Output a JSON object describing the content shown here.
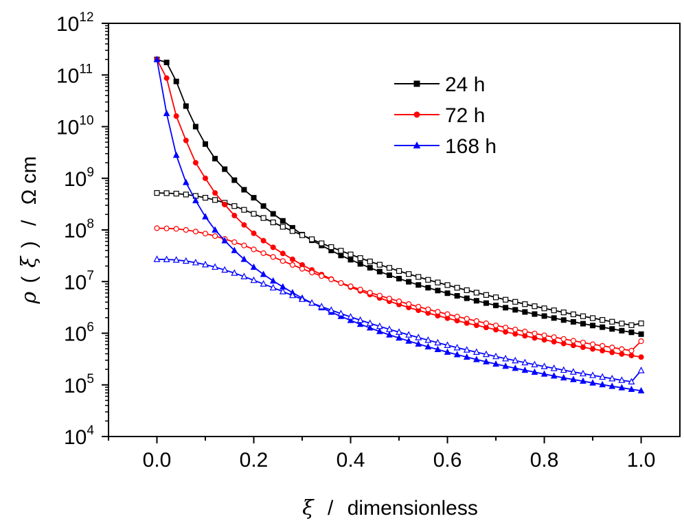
{
  "chart_data": {
    "type": "line",
    "title": "",
    "xlabel": {
      "symbol": "ξ",
      "separator": "/",
      "text": "dimensionless"
    },
    "ylabel": {
      "symbol": "ρ",
      "open": "(",
      "arg": "ξ",
      "close": ")",
      "separator": "/",
      "unit": "Ω cm"
    },
    "xlim": [
      -0.1,
      1.08
    ],
    "ylim": [
      10000,
      1000000000000
    ],
    "yscale": "log",
    "grid": false,
    "legend_position": "top-right",
    "xticks": [
      {
        "value": 0.0,
        "label": "0.0"
      },
      {
        "value": 0.2,
        "label": "0.2"
      },
      {
        "value": 0.4,
        "label": "0.4"
      },
      {
        "value": 0.6,
        "label": "0.6"
      },
      {
        "value": 0.8,
        "label": "0.8"
      },
      {
        "value": 1.0,
        "label": "1.0"
      }
    ],
    "yticks": [
      {
        "exp": 4,
        "base": "10",
        "sup": "4"
      },
      {
        "exp": 5,
        "base": "10",
        "sup": "5"
      },
      {
        "exp": 6,
        "base": "10",
        "sup": "6"
      },
      {
        "exp": 7,
        "base": "10",
        "sup": "7"
      },
      {
        "exp": 8,
        "base": "10",
        "sup": "8"
      },
      {
        "exp": 9,
        "base": "10",
        "sup": "9"
      },
      {
        "exp": 10,
        "base": "10",
        "sup": "10"
      },
      {
        "exp": 11,
        "base": "10",
        "sup": "11"
      },
      {
        "exp": 12,
        "base": "10",
        "sup": "12"
      }
    ],
    "x": [
      0.0,
      0.02,
      0.04,
      0.06,
      0.08,
      0.1,
      0.12,
      0.14,
      0.16,
      0.18,
      0.2,
      0.22,
      0.24,
      0.26,
      0.28,
      0.3,
      0.32,
      0.34,
      0.36,
      0.38,
      0.4,
      0.42,
      0.44,
      0.46,
      0.48,
      0.5,
      0.52,
      0.54,
      0.56,
      0.58,
      0.6,
      0.62,
      0.64,
      0.66,
      0.68,
      0.7,
      0.72,
      0.74,
      0.76,
      0.78,
      0.8,
      0.82,
      0.84,
      0.86,
      0.88,
      0.9,
      0.92,
      0.94,
      0.96,
      0.98,
      1.0
    ],
    "series": [
      {
        "name": "24 h",
        "color": "#000000",
        "marker": "square",
        "filled": true,
        "values": [
          200000000000.0,
          175000000000.0,
          75000000000.0,
          25000000000.0,
          10000000000.0,
          4600000000.0,
          2400000000.0,
          1500000000.0,
          920000000.0,
          600000000.0,
          420000000.0,
          290000000.0,
          205000000.0,
          150000000.0,
          110000000.0,
          81000000.0,
          63000000.0,
          50000000.0,
          40000000.0,
          32000000.0,
          26500000.0,
          22000000.0,
          18500000.0,
          15600000.0,
          13300000.0,
          11400000.0,
          9900000.0,
          8600000.0,
          7600000.0,
          6700000.0,
          5950000.0,
          5300000.0,
          4750000.0,
          4250000.0,
          3830000.0,
          3450000.0,
          3120000.0,
          2840000.0,
          2580000.0,
          2350000.0,
          2150000.0,
          1970000.0,
          1800000.0,
          1660000.0,
          1530000.0,
          1410000.0,
          1310000.0,
          1210000.0,
          1120000.0,
          1040000.0,
          960000.0
        ]
      },
      {
        "name": "",
        "color": "#000000",
        "marker": "square",
        "filled": false,
        "values": [
          520000000.0,
          515000000.0,
          505000000.0,
          485000000.0,
          455000000.0,
          420000000.0,
          380000000.0,
          335000000.0,
          290000000.0,
          245000000.0,
          205000000.0,
          170000000.0,
          140000000.0,
          115000000.0,
          95000000.0,
          79000000.0,
          66000000.0,
          55000000.0,
          46500000.0,
          39500000.0,
          33500000.0,
          28500000.0,
          24500000.0,
          21200000.0,
          18400000.0,
          16000000.0,
          14000000.0,
          12300000.0,
          10800000.0,
          9600000.0,
          8550000.0,
          7600000.0,
          6800000.0,
          6100000.0,
          5500000.0,
          4950000.0,
          4450000.0,
          4050000.0,
          3650000.0,
          3330000.0,
          3030000.0,
          2770000.0,
          2530000.0,
          2320000.0,
          2130000.0,
          1960000.0,
          1810000.0,
          1670000.0,
          1540000.0,
          1430000.0,
          1550000.0
        ]
      },
      {
        "name": "72 h",
        "color": "#ff0000",
        "marker": "circle",
        "filled": true,
        "values": [
          200000000000.0,
          87000000000.0,
          16000000000.0,
          5400000000.0,
          2000000000.0,
          1000000000.0,
          520000000.0,
          310000000.0,
          190000000.0,
          125000000.0,
          86000000.0,
          62000000.0,
          46000000.0,
          35000000.0,
          27000000.0,
          21000000.0,
          16800000.0,
          13700000.0,
          11200000.0,
          9300000.0,
          7800000.0,
          6600000.0,
          5600000.0,
          4800000.0,
          4150000.0,
          3600000.0,
          3150000.0,
          2780000.0,
          2460000.0,
          2180000.0,
          1950000.0,
          1750000.0,
          1570000.0,
          1420000.0,
          1290000.0,
          1170000.0,
          1060000.0,
          970000.0,
          890000.0,
          810000.0,
          745000.0,
          685000.0,
          630000.0,
          580000.0,
          535000.0,
          495000.0,
          460000.0,
          425000.0,
          395000.0,
          370000.0,
          345000.0
        ]
      },
      {
        "name": "",
        "color": "#ff0000",
        "marker": "circle",
        "filled": false,
        "values": [
          108000000.0,
          107000000.0,
          105000000.0,
          100000000.0,
          93000000.0,
          85000000.0,
          76000000.0,
          67000000.0,
          58000000.0,
          50000000.0,
          42000000.0,
          35500000.0,
          30000000.0,
          25000000.0,
          21000000.0,
          17700000.0,
          15000000.0,
          12800000.0,
          11000000.0,
          9400000.0,
          8100000.0,
          7000000.0,
          6100000.0,
          5350000.0,
          4700000.0,
          4150000.0,
          3670000.0,
          3260000.0,
          2900000.0,
          2600000.0,
          2340000.0,
          2100000.0,
          1900000.0,
          1720000.0,
          1560000.0,
          1420000.0,
          1290000.0,
          1180000.0,
          1080000.0,
          990000.0,
          910000.0,
          840000.0,
          775000.0,
          715000.0,
          660000.0,
          610000.0,
          570000.0,
          530000.0,
          493000.0,
          460000.0,
          700000.0
        ]
      },
      {
        "name": "168 h",
        "color": "#0000ff",
        "marker": "triangle",
        "filled": true,
        "values": [
          200000000000.0,
          18000000000.0,
          2800000000.0,
          830000000.0,
          370000000.0,
          180000000.0,
          100000000.0,
          62000000.0,
          40000000.0,
          27000000.0,
          19000000.0,
          13800000.0,
          10300000.0,
          7900000.0,
          6100000.0,
          4800000.0,
          3850000.0,
          3120000.0,
          2560000.0,
          2120000.0,
          1770000.0,
          1490000.0,
          1270000.0,
          1080000.0,
          930000.0,
          810000.0,
          705000.0,
          620000.0,
          545000.0,
          485000.0,
          430000.0,
          385000.0,
          345000.0,
          310000.0,
          280000.0,
          253000.0,
          230000.0,
          210000.0,
          192000.0,
          176000.0,
          162000.0,
          149000.0,
          137000.0,
          127000.0,
          118000.0,
          109000.0,
          101000.0,
          94000.0,
          88000.0,
          82000.0,
          77000.0
        ]
      },
      {
        "name": "",
        "color": "#0000ff",
        "marker": "triangle",
        "filled": false,
        "values": [
          27000000.0,
          26800000.0,
          26200000.0,
          25000000.0,
          23300000.0,
          21300000.0,
          19100000.0,
          16800000.0,
          14600000.0,
          12500000.0,
          10600000.0,
          9000000.0,
          7600000.0,
          6400000.0,
          5400000.0,
          4550000.0,
          3850000.0,
          3280000.0,
          2800000.0,
          2400000.0,
          2070000.0,
          1790000.0,
          1560000.0,
          1360000.0,
          1190000.0,
          1050000.0,
          930000.0,
          825000.0,
          735000.0,
          655000.0,
          585000.0,
          525000.0,
          475000.0,
          430000.0,
          390000.0,
          355000.0,
          322000.0,
          295000.0,
          270000.0,
          247000.0,
          227000.0,
          209000.0,
          193000.0,
          178000.0,
          165000.0,
          153000.0,
          142000.0,
          132000.0,
          123000.0,
          115000.0,
          190000.0
        ]
      }
    ]
  }
}
